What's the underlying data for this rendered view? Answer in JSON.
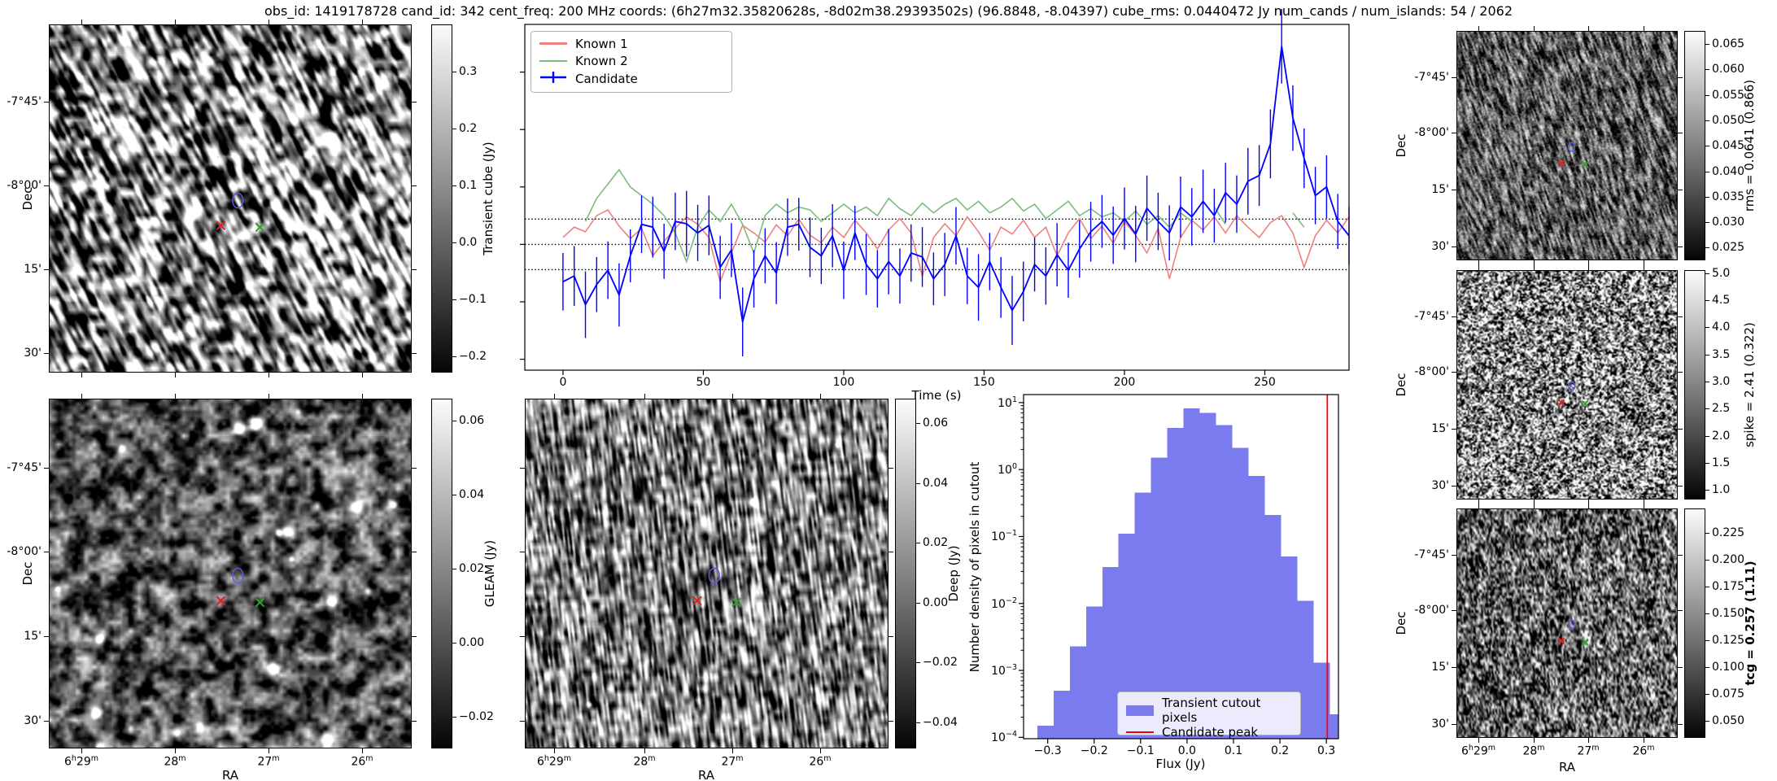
{
  "title": "obs_id: 1419178728 cand_id: 342 cent_freq: 200 MHz coords: (6h27m32.35820628s, -8d02m38.29393502s) (96.8848, -8.04397) cube_rms: 0.0440472 Jy num_cands / num_islands: 54 / 2062",
  "axes": {
    "dec_label": "Dec",
    "ra_label": "RA",
    "dec_ticks": [
      "-7°45'",
      "-8°00'",
      "15'",
      "30'"
    ],
    "ra_ticks": [
      "6h29m",
      "28m",
      "27m",
      "26m"
    ]
  },
  "panels": {
    "transient_cube": {
      "colorbar_label": "Transient cube (Jy)",
      "colorbar_ticks": [
        "0.3",
        "0.2",
        "0.1",
        "0.0",
        "−0.1",
        "−0.2"
      ]
    },
    "gleam": {
      "colorbar_label": "GLEAM (Jy)",
      "colorbar_ticks": [
        "0.06",
        "0.04",
        "0.02",
        "0.00",
        "−0.02"
      ]
    },
    "deep": {
      "colorbar_label": "Deep (Jy)",
      "colorbar_ticks": [
        "0.06",
        "0.04",
        "0.02",
        "0.00",
        "−0.02",
        "−0.04"
      ]
    },
    "rms": {
      "colorbar_label": "rms = 0.0641 (0.866)",
      "colorbar_ticks": [
        "0.065",
        "0.060",
        "0.055",
        "0.050",
        "0.045",
        "0.040",
        "0.035",
        "0.030",
        "0.025"
      ]
    },
    "spike": {
      "colorbar_label": "spike = 2.41 (0.322)",
      "colorbar_ticks": [
        "5.0",
        "4.5",
        "4.0",
        "3.5",
        "3.0",
        "2.5",
        "2.0",
        "1.5",
        "1.0"
      ]
    },
    "tcg": {
      "colorbar_label": "tcg = 0.257 (1.11)",
      "colorbar_ticks": [
        "0.225",
        "0.200",
        "0.175",
        "0.150",
        "0.125",
        "0.100",
        "0.075",
        "0.050"
      ]
    }
  },
  "markers": {
    "candidate_contour_color": "#5a5ae0",
    "known1_color": "#e02020",
    "known2_color": "#2e9e2e"
  },
  "chart_data": [
    {
      "type": "line",
      "title": "",
      "xlabel": "Time (s)",
      "ylabel": "",
      "xticks": [
        0,
        50,
        100,
        150,
        200,
        250
      ],
      "xlim": [
        -13.6,
        280
      ],
      "ylim": [
        -0.219,
        0.383
      ],
      "threshold_lines": [
        0.0440472,
        0.0,
        -0.0440472
      ],
      "legend_position": "upper left",
      "x": [
        0,
        4,
        8,
        12,
        16,
        20,
        24,
        28,
        32,
        36,
        40,
        44,
        48,
        52,
        56,
        60,
        64,
        68,
        72,
        76,
        80,
        84,
        88,
        92,
        96,
        100,
        104,
        108,
        112,
        116,
        120,
        124,
        128,
        132,
        136,
        140,
        144,
        148,
        152,
        156,
        160,
        164,
        168,
        172,
        176,
        180,
        184,
        188,
        192,
        196,
        200,
        204,
        208,
        212,
        216,
        220,
        224,
        228,
        232,
        236,
        240,
        244,
        248,
        252,
        256,
        260,
        264,
        268,
        272,
        276,
        280
      ],
      "series": [
        {
          "name": "Known 1",
          "color": "#f08080",
          "values": [
            0.012,
            0.03,
            0.022,
            0.05,
            0.06,
            0.032,
            0.01,
            0.028,
            -0.02,
            0.005,
            0.028,
            0.048,
            0.035,
            0.012,
            -0.065,
            -0.015,
            0.033,
            0.02,
            0.004,
            0.034,
            0.015,
            0.044,
            0.016,
            0.003,
            0.03,
            0.012,
            0.042,
            0.02,
            -0.008,
            0.025,
            0.045,
            0.02,
            -0.055,
            0.012,
            0.036,
            0.015,
            0.048,
            0.022,
            -0.01,
            0.03,
            0.018,
            0.042,
            0.012,
            0.03,
            -0.02,
            0.02,
            0.045,
            0.01,
            0.032,
            0.002,
            0.04,
            0.016,
            -0.015,
            0.028,
            -0.06,
            0.012,
            0.042,
            0.025,
            0.048,
            0.02,
            0.05,
            0.03,
            0.012,
            0.038,
            0.05,
            0.02,
            -0.04,
            0.015,
            0.042,
            0.02,
            0.048
          ]
        },
        {
          "name": "Known 2",
          "color": "#7cbc7c",
          "values": [
            null,
            null,
            0.04,
            0.08,
            0.105,
            0.13,
            0.1,
            0.085,
            0.07,
            0.05,
            0.02,
            -0.03,
            0.03,
            0.06,
            0.04,
            0.07,
            0.035,
            -0.015,
            0.05,
            0.07,
            0.055,
            0.065,
            0.06,
            0.04,
            0.055,
            0.07,
            0.055,
            0.065,
            0.05,
            0.08,
            0.062,
            0.05,
            0.072,
            0.055,
            0.07,
            0.08,
            0.06,
            0.075,
            0.055,
            0.065,
            0.08,
            0.058,
            0.07,
            0.045,
            0.06,
            0.075,
            0.05,
            0.062,
            0.048,
            0.055,
            0.04,
            0.058,
            0.035,
            0.05,
            0.03,
            0.055,
            0.04,
            null,
            0.065,
            0.035,
            null,
            0.055,
            null,
            0.04,
            null,
            0.055,
            0.03,
            null,
            0.045,
            null,
            0.04
          ]
        },
        {
          "name": "Candidate",
          "color": "#0000ff",
          "values": [
            -0.065,
            -0.055,
            -0.105,
            -0.07,
            -0.045,
            -0.088,
            -0.02,
            0.035,
            0.03,
            -0.012,
            0.04,
            0.036,
            0.02,
            0.033,
            -0.04,
            -0.01,
            -0.135,
            -0.06,
            -0.02,
            -0.05,
            0.03,
            0.035,
            -0.005,
            -0.02,
            0.015,
            -0.045,
            0.02,
            -0.035,
            -0.06,
            -0.03,
            -0.055,
            -0.015,
            -0.022,
            -0.06,
            -0.035,
            0.015,
            -0.055,
            -0.075,
            -0.03,
            -0.075,
            -0.115,
            -0.082,
            -0.035,
            -0.055,
            -0.018,
            -0.045,
            -0.008,
            0.022,
            0.04,
            0.016,
            0.045,
            0.018,
            0.063,
            0.04,
            0.02,
            0.065,
            0.048,
            0.075,
            0.05,
            0.09,
            0.07,
            0.11,
            0.12,
            0.175,
            0.345,
            0.22,
            0.15,
            0.085,
            0.1,
            0.04,
            0.015
          ],
          "yerr": [
            0.05,
            0.052,
            0.058,
            0.048,
            0.05,
            0.055,
            0.046,
            0.05,
            0.053,
            0.048,
            0.05,
            0.057,
            0.049,
            0.052,
            0.055,
            0.047,
            0.06,
            0.05,
            0.048,
            0.054,
            0.05,
            0.046,
            0.052,
            0.049,
            0.055,
            0.05,
            0.047,
            0.053,
            0.05,
            0.057,
            0.048,
            0.05,
            0.052,
            0.046,
            0.055,
            0.05,
            0.049,
            0.058,
            0.05,
            0.053,
            0.06,
            0.052,
            0.047,
            0.05,
            0.055,
            0.048,
            0.05,
            0.052,
            0.046,
            0.05,
            0.054,
            0.049,
            0.057,
            0.05,
            0.048,
            0.053,
            0.05,
            0.055,
            0.047,
            0.052,
            0.05,
            0.058,
            0.053,
            0.06,
            0.065,
            0.057,
            0.052,
            0.05,
            0.055,
            0.048,
            0.05
          ]
        }
      ]
    },
    {
      "type": "bar",
      "title": "",
      "xlabel": "Flux (Jy)",
      "ylabel": "Number density of pixels in cutout",
      "bar_color": "#7b7bf0",
      "line_color": "#ff0000",
      "legend": {
        "bars": "Transient cutout pixels",
        "line": "Candidate peak"
      },
      "bins_start": -0.3225,
      "bin_width": 0.035,
      "values": [
        0.00015,
        0.0005,
        0.0023,
        0.009,
        0.035,
        0.11,
        0.45,
        1.5,
        4.2,
        8.2,
        7.0,
        4.6,
        2.1,
        0.8,
        0.21,
        0.05,
        0.011,
        0.0013,
        0.00022
      ],
      "candidate_peak_flux": 0.302,
      "xticks": [
        "−0.3",
        "−0.2",
        "−0.1",
        "0.0",
        "0.1",
        "0.2",
        "0.3"
      ],
      "xtick_values": [
        -0.3,
        -0.2,
        -0.1,
        0,
        0.1,
        0.2,
        0.3
      ],
      "ytick_exponents": [
        1,
        0,
        -1,
        -2,
        -3,
        -4
      ],
      "xlim": [
        -0.352,
        0.326
      ],
      "ylim_log10": [
        -4.02,
        1.12
      ],
      "yscale": "log"
    }
  ]
}
